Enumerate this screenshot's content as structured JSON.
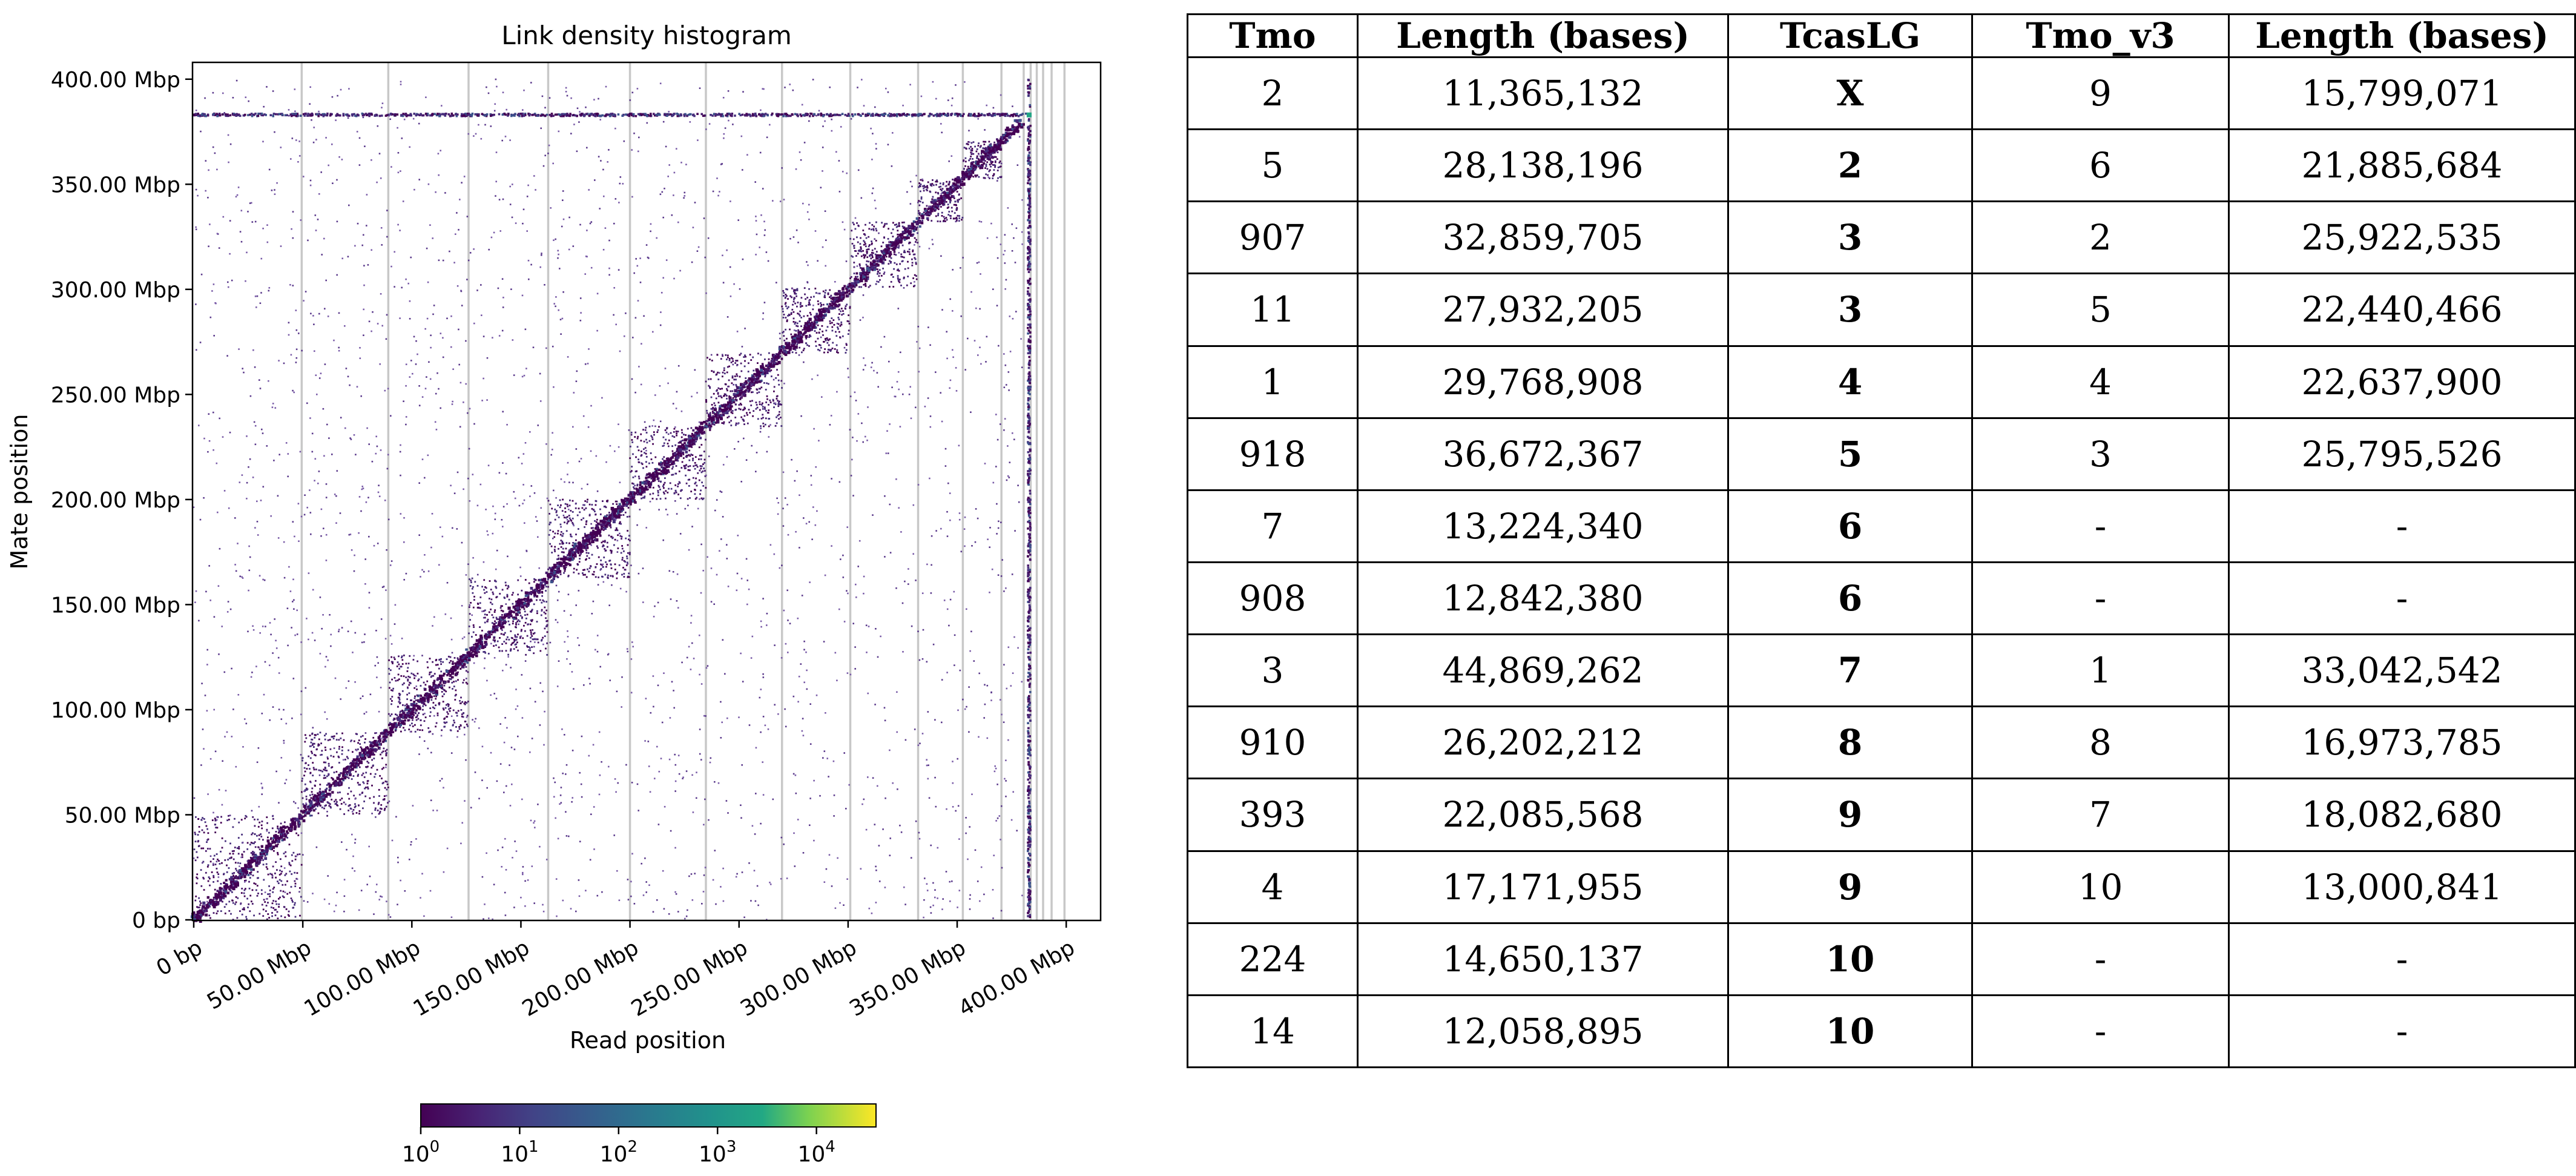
{
  "chart_data": [
    {
      "type": "heatmap",
      "title": "Link density histogram",
      "xlabel": "Read position",
      "ylabel": "Mate position",
      "x_ticks": [
        "0 bp",
        "50.00 Mbp",
        "100.00 Mbp",
        "150.00 Mbp",
        "200.00 Mbp",
        "250.00 Mbp",
        "300.00 Mbp",
        "350.00 Mbp",
        "400.00 Mbp"
      ],
      "y_ticks": [
        "0 bp",
        "50.00 Mbp",
        "100.00 Mbp",
        "150.00 Mbp",
        "200.00 Mbp",
        "250.00 Mbp",
        "300.00 Mbp",
        "350.00 Mbp",
        "400.00 Mbp"
      ],
      "tick_values_mbp": [
        0,
        50,
        100,
        150,
        200,
        250,
        300,
        350,
        400
      ],
      "xlim_mbp": [
        0,
        408
      ],
      "ylim_mbp": [
        0,
        408
      ],
      "scaffold_boundaries_mbp": [
        49.5,
        89.2,
        126.0,
        162.5,
        200.0,
        234.8,
        269.7,
        301.0,
        332.1,
        352.6,
        370.3,
        380.5,
        383.7,
        386.5,
        389.4,
        393.3,
        399.2
      ],
      "unplaced_band_mbp": 383,
      "grid": true,
      "colormap": "viridis",
      "colorbar": {
        "scale": "log",
        "min": 1,
        "max": 40000,
        "ticks": [
          {
            "base": "10",
            "exp": "0",
            "value": 1
          },
          {
            "base": "10",
            "exp": "1",
            "value": 10
          },
          {
            "base": "10",
            "exp": "2",
            "value": 100
          },
          {
            "base": "10",
            "exp": "3",
            "value": 1000
          },
          {
            "base": "10",
            "exp": "4",
            "value": 10000
          }
        ],
        "placement": "bottom"
      }
    },
    {
      "type": "table",
      "columns": [
        "Tmo",
        "Length (bases)",
        "TcasLG",
        "Tmo_v3",
        "Length (bases)"
      ],
      "rows": [
        [
          "2",
          "11,365,132",
          "X",
          "9",
          "15,799,071"
        ],
        [
          "5",
          "28,138,196",
          "2",
          "6",
          "21,885,684"
        ],
        [
          "907",
          "32,859,705",
          "3",
          "2",
          "25,922,535"
        ],
        [
          "11",
          "27,932,205",
          "3",
          "5",
          "22,440,466"
        ],
        [
          "1",
          "29,768,908",
          "4",
          "4",
          "22,637,900"
        ],
        [
          "918",
          "36,672,367",
          "5",
          "3",
          "25,795,526"
        ],
        [
          "7",
          "13,224,340",
          "6",
          "-",
          "-"
        ],
        [
          "908",
          "12,842,380",
          "6",
          "-",
          "-"
        ],
        [
          "3",
          "44,869,262",
          "7",
          "1",
          "33,042,542"
        ],
        [
          "910",
          "26,202,212",
          "8",
          "8",
          "16,973,785"
        ],
        [
          "393",
          "22,085,568",
          "9",
          "7",
          "18,082,680"
        ],
        [
          "4",
          "17,171,955",
          "9",
          "10",
          "13,000,841"
        ],
        [
          "224",
          "14,650,137",
          "10",
          "-",
          "-"
        ],
        [
          "14",
          "12,058,895",
          "10",
          "-",
          "-"
        ]
      ],
      "bold_column": 2
    }
  ]
}
